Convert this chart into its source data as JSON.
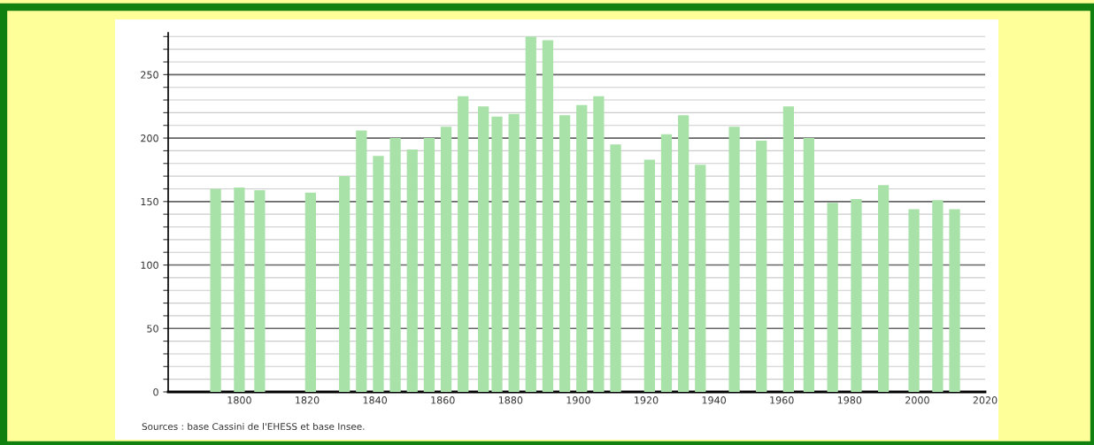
{
  "chart_data": {
    "type": "bar",
    "x": [
      1793,
      1800,
      1806,
      1821,
      1831,
      1836,
      1841,
      1846,
      1851,
      1856,
      1861,
      1866,
      1872,
      1876,
      1881,
      1886,
      1891,
      1896,
      1901,
      1906,
      1911,
      1921,
      1926,
      1931,
      1936,
      1946,
      1954,
      1962,
      1968,
      1975,
      1982,
      1990,
      1999,
      2006,
      2011
    ],
    "values": [
      160,
      161,
      159,
      157,
      170,
      206,
      186,
      200,
      191,
      200,
      209,
      233,
      225,
      217,
      219,
      280,
      277,
      218,
      226,
      233,
      195,
      183,
      203,
      218,
      179,
      209,
      198,
      225,
      200,
      149,
      152,
      163,
      144,
      151,
      144
    ],
    "color": "#a8e2a8",
    "xlim": [
      1779,
      2020
    ],
    "xticks": [
      1800,
      1820,
      1840,
      1860,
      1880,
      1900,
      1920,
      1940,
      1960,
      1980,
      2000,
      2020
    ],
    "ylim": [
      0,
      283
    ],
    "yticks": [
      0,
      {
        "value": 10,
        "label": null
      },
      {
        "value": 20,
        "label": null
      },
      {
        "value": 30,
        "label": null
      },
      {
        "value": 40,
        "label": null
      },
      50,
      {
        "value": 60,
        "label": null
      },
      {
        "value": 70,
        "label": null
      },
      {
        "value": 80,
        "label": null
      },
      {
        "value": 90,
        "label": null
      },
      100,
      {
        "value": 110,
        "label": null
      },
      {
        "value": 120,
        "label": null
      },
      {
        "value": 130,
        "label": null
      },
      {
        "value": 140,
        "label": null
      },
      150,
      {
        "value": 160,
        "label": null
      },
      {
        "value": 170,
        "label": null
      },
      {
        "value": 180,
        "label": null
      },
      {
        "value": 190,
        "label": null
      },
      200,
      {
        "value": 210,
        "label": null
      },
      {
        "value": 220,
        "label": null
      },
      {
        "value": 230,
        "label": null
      },
      {
        "value": 240,
        "label": null
      },
      250,
      {
        "value": 260,
        "label": null
      },
      {
        "value": 270,
        "label": null
      },
      {
        "value": 280,
        "label": null
      }
    ],
    "grid": "y",
    "annotations": [
      "Sources : base Cassini de l'EHESS et base Insee."
    ]
  }
}
